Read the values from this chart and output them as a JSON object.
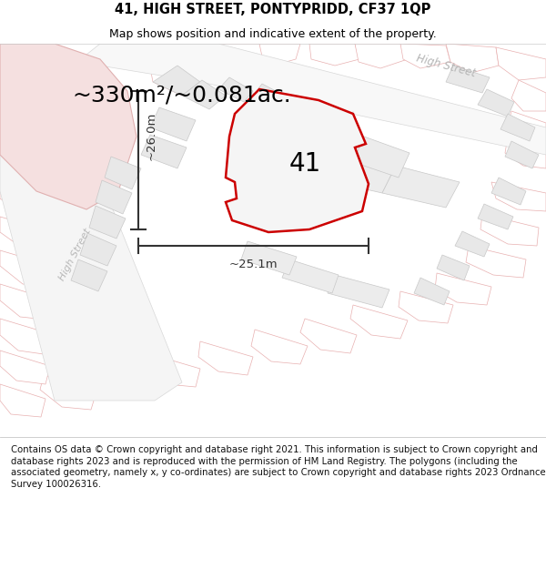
{
  "title_line1": "41, HIGH STREET, PONTYPRIDD, CF37 1QP",
  "title_line2": "Map shows position and indicative extent of the property.",
  "area_text": "~330m²/~0.081ac.",
  "label_number": "41",
  "dim_vertical": "~26.0m",
  "dim_horizontal": "~25.1m",
  "footer_text": "Contains OS data © Crown copyright and database right 2021. This information is subject to Crown copyright and database rights 2023 and is reproduced with the permission of HM Land Registry. The polygons (including the associated geometry, namely x, y co-ordinates) are subject to Crown copyright and database rights 2023 Ordnance Survey 100026316.",
  "title_fontsize": 10.5,
  "subtitle_fontsize": 9,
  "area_fontsize": 18,
  "label_fontsize": 20,
  "dim_fontsize": 9.5,
  "footer_fontsize": 7.3,
  "parcel_fill": "#efefef",
  "parcel_edge": "#c8c8c8",
  "pink_fill": "#fce8e8",
  "pink_edge": "#e8a0a0",
  "road_fill": "#ffffff",
  "main_fill": "#f8f8f8",
  "main_edge": "#cc0000",
  "street_color": "#c0c0c0",
  "dim_color": "#333333"
}
